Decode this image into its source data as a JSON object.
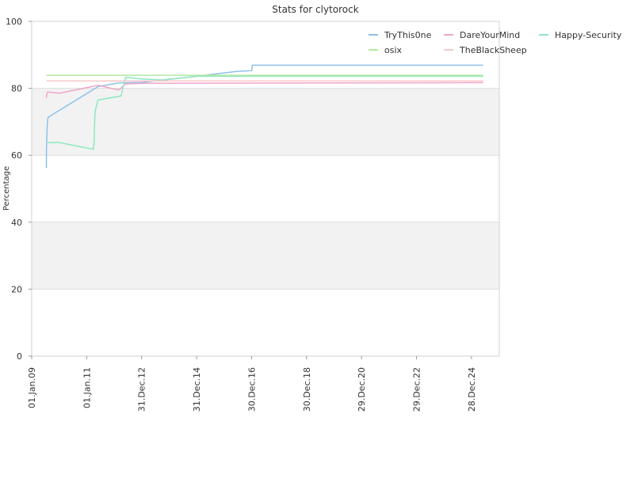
{
  "chart_data": {
    "type": "line",
    "title": "Stats for clytorock",
    "xlabel": "",
    "ylabel": "Percentage",
    "xlim": [
      "2009-01-01",
      "2026-01-01"
    ],
    "ylim": [
      0,
      100
    ],
    "y_ticks": [
      0,
      20,
      40,
      60,
      80,
      100
    ],
    "x_ticks": [
      {
        "date": "2009-01-01",
        "label": "01.Jan.09"
      },
      {
        "date": "2011-01-01",
        "label": "01.Jan.11"
      },
      {
        "date": "2012-12-31",
        "label": "31.Dec.12"
      },
      {
        "date": "2014-12-31",
        "label": "31.Dec.14"
      },
      {
        "date": "2016-12-30",
        "label": "30.Dec.16"
      },
      {
        "date": "2018-12-30",
        "label": "30.Dec.18"
      },
      {
        "date": "2020-12-29",
        "label": "29.Dec.20"
      },
      {
        "date": "2022-12-29",
        "label": "29.Dec.22"
      },
      {
        "date": "2024-12-28",
        "label": "28.Dec.24"
      }
    ],
    "grid": true,
    "alternating_bands": [
      "#f2f2f2",
      "#ffffff"
    ],
    "legend_position": "top-right",
    "series": [
      {
        "name": "TryThis0ne",
        "color": "#8fc1e8",
        "points": [
          [
            "2009-07-15",
            56.2
          ],
          [
            "2009-07-16",
            61.5
          ],
          [
            "2009-07-20",
            64.5
          ],
          [
            "2009-07-25",
            68.5
          ],
          [
            "2009-08-01",
            70.6
          ],
          [
            "2009-08-10",
            71.4
          ],
          [
            "2011-06-01",
            80.5
          ],
          [
            "2012-03-01",
            81.6
          ],
          [
            "2013-01-15",
            81.8
          ],
          [
            "2015-01-01",
            83.6
          ],
          [
            "2016-06-01",
            85.0
          ],
          [
            "2017-01-01",
            85.3
          ],
          [
            "2017-01-10",
            86.9
          ],
          [
            "2025-06-01",
            86.9
          ]
        ]
      },
      {
        "name": "DareYourMind",
        "color": "#f0a4c8",
        "points": [
          [
            "2009-07-15",
            77.2
          ],
          [
            "2009-07-20",
            78.3
          ],
          [
            "2009-08-01",
            78.9
          ],
          [
            "2010-01-01",
            78.5
          ],
          [
            "2011-06-01",
            80.9
          ],
          [
            "2012-03-01",
            79.5
          ],
          [
            "2012-06-01",
            81.3
          ],
          [
            "2013-01-01",
            81.5
          ],
          [
            "2025-06-01",
            81.7
          ]
        ]
      },
      {
        "name": "Happy-Security",
        "color": "#8fe8bf",
        "points": [
          [
            "2009-07-15",
            63.8
          ],
          [
            "2010-01-01",
            63.8
          ],
          [
            "2011-04-01",
            61.8
          ],
          [
            "2011-04-10",
            64.0
          ],
          [
            "2011-04-20",
            72.2
          ],
          [
            "2011-05-01",
            74.0
          ],
          [
            "2011-06-01",
            76.5
          ],
          [
            "2012-04-01",
            77.7
          ],
          [
            "2012-05-01",
            80.5
          ],
          [
            "2012-06-01",
            83.3
          ],
          [
            "2013-01-01",
            82.8
          ],
          [
            "2013-10-01",
            82.5
          ],
          [
            "2015-01-01",
            83.6
          ],
          [
            "2025-06-01",
            83.6
          ]
        ]
      },
      {
        "name": "osix",
        "color": "#b0e8a0",
        "points": [
          [
            "2009-07-15",
            83.9
          ],
          [
            "2025-06-01",
            83.9
          ]
        ]
      },
      {
        "name": "TheBlackSheep",
        "color": "#f8c8c8",
        "points": [
          [
            "2009-07-15",
            82.2
          ],
          [
            "2025-06-01",
            82.2
          ]
        ]
      }
    ]
  }
}
